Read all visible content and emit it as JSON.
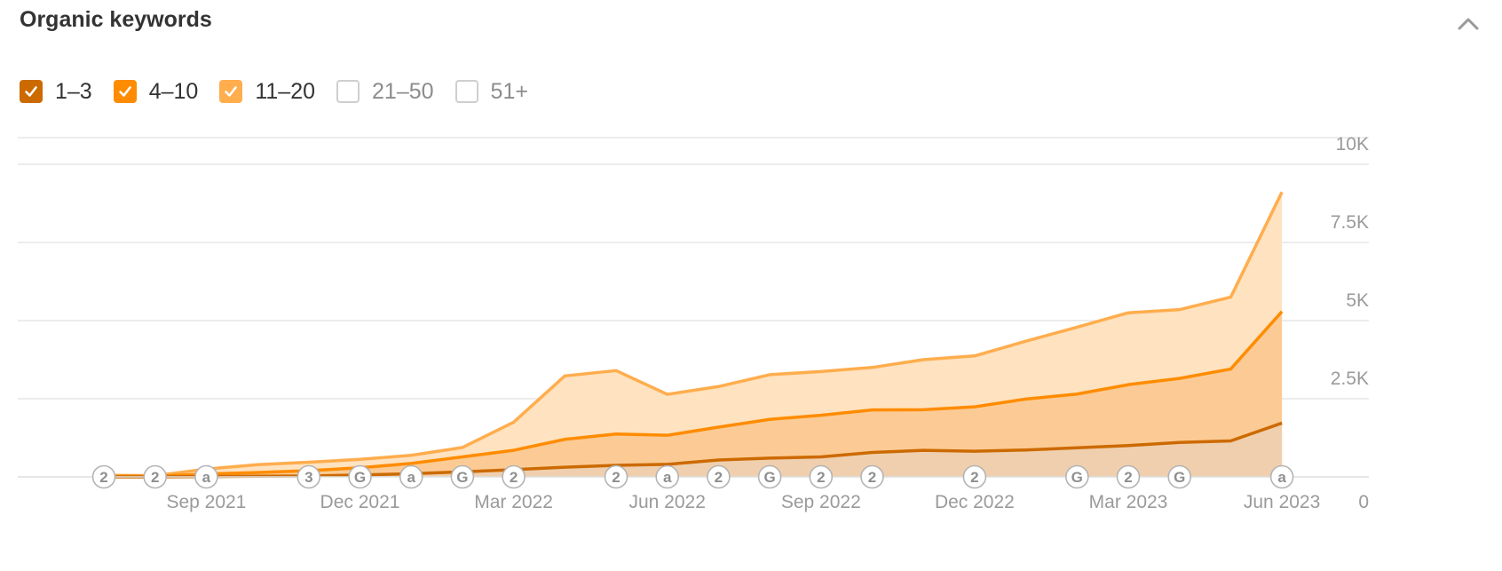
{
  "header": {
    "title": "Organic keywords",
    "collapse_icon": "chevron-up-icon"
  },
  "legend": [
    {
      "label": "1–3",
      "checked": true,
      "color": "#cc6a00"
    },
    {
      "label": "4–10",
      "checked": true,
      "color": "#ff8c00"
    },
    {
      "label": "11–20",
      "checked": true,
      "color": "#ffad4d"
    },
    {
      "label": "21–50",
      "checked": false,
      "color": "#cfcfcf"
    },
    {
      "label": "51+",
      "checked": false,
      "color": "#cfcfcf"
    }
  ],
  "chart_data": {
    "type": "area",
    "stacked": true,
    "grid": true,
    "y_axis_position": "right",
    "ylim": [
      0,
      10000
    ],
    "y_ticks": [
      {
        "value": 0,
        "label": "0"
      },
      {
        "value": 2500,
        "label": "2.5K"
      },
      {
        "value": 5000,
        "label": "5K"
      },
      {
        "value": 7500,
        "label": "7.5K"
      },
      {
        "value": 10000,
        "label": "10K"
      }
    ],
    "x": [
      "2021-07",
      "2021-08",
      "2021-09",
      "2021-10",
      "2021-11",
      "2021-12",
      "2022-01",
      "2022-02",
      "2022-03",
      "2022-04",
      "2022-05",
      "2022-06",
      "2022-07",
      "2022-08",
      "2022-09",
      "2022-10",
      "2022-11",
      "2022-12",
      "2023-01",
      "2023-02",
      "2023-03",
      "2023-04",
      "2023-05",
      "2023-06"
    ],
    "x_ticks": [
      {
        "x": "2021-09",
        "label": "Sep 2021"
      },
      {
        "x": "2021-12",
        "label": "Dec 2021"
      },
      {
        "x": "2022-03",
        "label": "Mar 2022"
      },
      {
        "x": "2022-06",
        "label": "Jun 2022"
      },
      {
        "x": "2022-09",
        "label": "Sep 2022"
      },
      {
        "x": "2022-12",
        "label": "Dec 2022"
      },
      {
        "x": "2023-03",
        "label": "Mar 2023"
      },
      {
        "x": "2023-06",
        "label": "Jun 2023"
      }
    ],
    "series": [
      {
        "name": "1–3",
        "color": "#cc6a00",
        "fill": "#f0cfae",
        "values": [
          0,
          0,
          10,
          20,
          30,
          60,
          100,
          160,
          230,
          310,
          370,
          400,
          540,
          600,
          640,
          780,
          850,
          820,
          860,
          930,
          1000,
          1100,
          1150,
          1720
        ]
      },
      {
        "name": "4–10",
        "color": "#ff8c00",
        "fill": "#fccb95",
        "values": [
          20,
          20,
          80,
          120,
          170,
          230,
          330,
          480,
          620,
          890,
          1000,
          930,
          1050,
          1240,
          1330,
          1360,
          1300,
          1420,
          1630,
          1720,
          1950,
          2050,
          2300,
          3570
        ]
      },
      {
        "name": "11–20",
        "color": "#ffad4d",
        "fill": "#ffe2bf",
        "values": [
          30,
          20,
          160,
          250,
          270,
          270,
          260,
          300,
          900,
          2030,
          2030,
          1310,
          1300,
          1430,
          1400,
          1360,
          1600,
          1630,
          1850,
          2140,
          2300,
          2200,
          2300,
          3820
        ]
      }
    ],
    "annotations": [
      {
        "x": "2021-07",
        "label": "2"
      },
      {
        "x": "2021-08",
        "label": "2"
      },
      {
        "x": "2021-09",
        "label": "a"
      },
      {
        "x": "2021-11",
        "label": "3"
      },
      {
        "x": "2021-12",
        "label": "G"
      },
      {
        "x": "2022-01",
        "label": "a"
      },
      {
        "x": "2022-02",
        "label": "G"
      },
      {
        "x": "2022-03",
        "label": "2"
      },
      {
        "x": "2022-05",
        "label": "2"
      },
      {
        "x": "2022-06",
        "label": "a"
      },
      {
        "x": "2022-07",
        "label": "2"
      },
      {
        "x": "2022-08",
        "label": "G"
      },
      {
        "x": "2022-09",
        "label": "2"
      },
      {
        "x": "2022-10",
        "label": "2"
      },
      {
        "x": "2022-12",
        "label": "2"
      },
      {
        "x": "2023-02",
        "label": "G"
      },
      {
        "x": "2023-03",
        "label": "2"
      },
      {
        "x": "2023-04",
        "label": "G"
      },
      {
        "x": "2023-06",
        "label": "a"
      }
    ]
  }
}
